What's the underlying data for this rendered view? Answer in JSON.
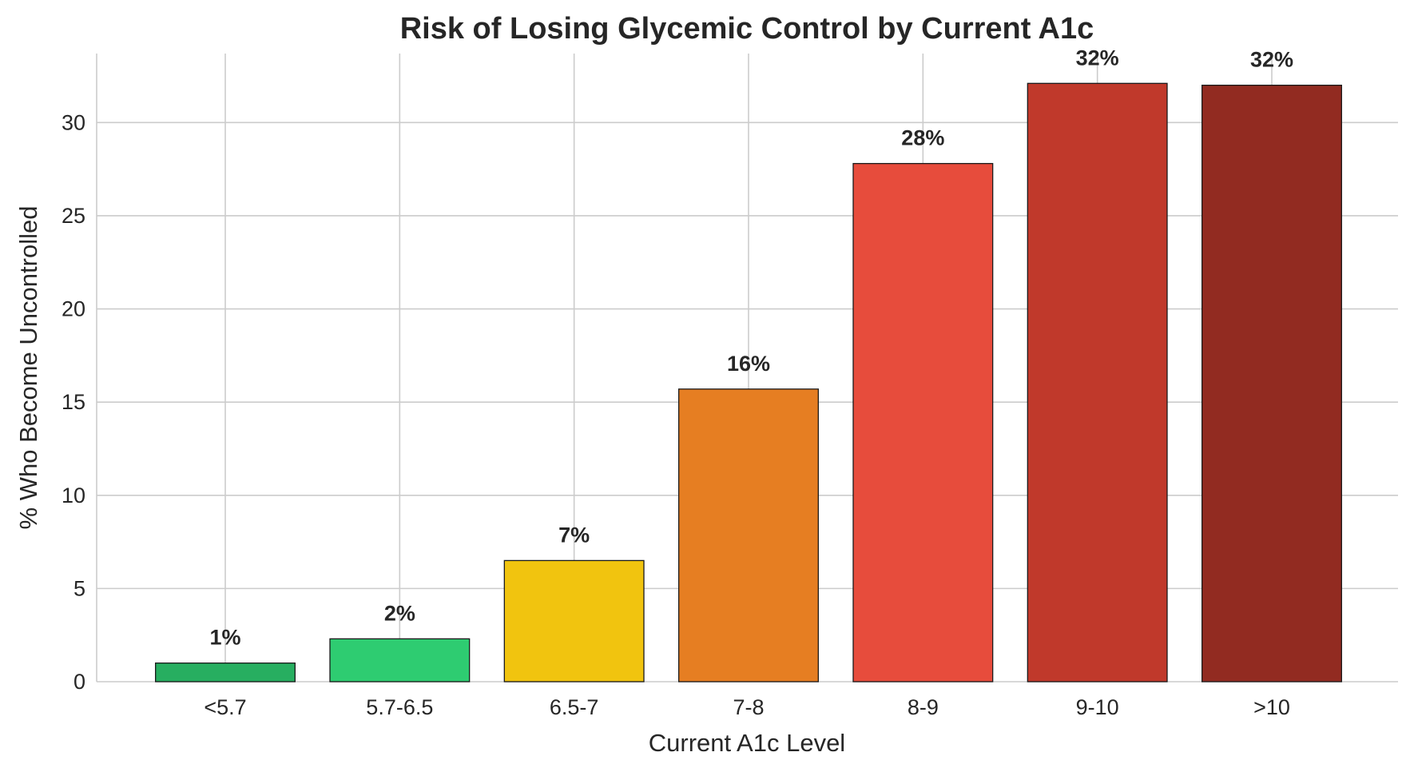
{
  "chart_data": {
    "type": "bar",
    "title": "Risk of Losing Glycemic Control by Current A1c",
    "xlabel": "Current A1c Level",
    "ylabel": "% Who Become Uncontrolled",
    "categories": [
      "<5.7",
      "5.7-6.5",
      "6.5-7",
      "7-8",
      "8-9",
      "9-10",
      ">10"
    ],
    "values": [
      1.0,
      2.3,
      6.5,
      15.7,
      27.8,
      32.1,
      32.0
    ],
    "data_labels": [
      "1%",
      "2%",
      "7%",
      "16%",
      "28%",
      "32%",
      "32%"
    ],
    "colors": [
      "#27ae60",
      "#2ecc71",
      "#f1c40f",
      "#e67e22",
      "#e74c3c",
      "#c0392b",
      "#922b21"
    ],
    "ylim": [
      0,
      33.7
    ],
    "yticks": [
      0,
      5,
      10,
      15,
      20,
      25,
      30
    ],
    "grid": true,
    "legend": "none"
  }
}
